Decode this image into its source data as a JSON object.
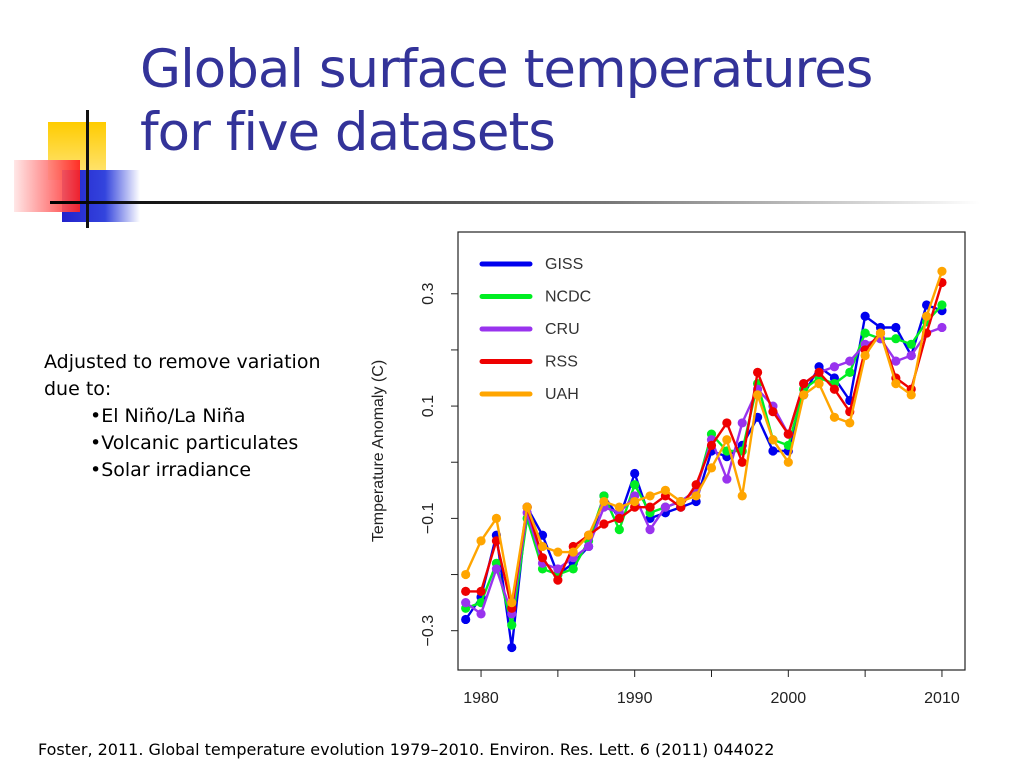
{
  "slide": {
    "title_lines": [
      "Global surface temperatures",
      "for five datasets"
    ],
    "intro": "Adjusted to remove variation due to:",
    "bullets": [
      "El Niño/La Niña",
      "Volcanic particulates",
      "Solar irradiance"
    ],
    "citation": "Foster, 2011. Global temperature evolution 1979–2010. Environ. Res. Lett. 6 (2011) 044022",
    "title_color": "#333399",
    "decor_colors": {
      "yellow": "#ffcc00",
      "red": "#ff3333",
      "blue": "#3333cc"
    }
  },
  "chart_data": {
    "type": "line",
    "title": "",
    "xlabel": "",
    "ylabel": "Temperature Anomaly (C)",
    "xlim": [
      1978.5,
      2011.5
    ],
    "ylim": [
      -0.37,
      0.41
    ],
    "xticks": [
      1980,
      1990,
      2000,
      2010
    ],
    "yticks": [
      -0.3,
      -0.1,
      0.1,
      0.3
    ],
    "ytick_labels": [
      "−0.3",
      "−0.1",
      "0.1",
      "0.3"
    ],
    "grid": false,
    "legend_position": "top-left",
    "x": [
      1979,
      1980,
      1981,
      1982,
      1983,
      1984,
      1985,
      1986,
      1987,
      1988,
      1989,
      1990,
      1991,
      1992,
      1993,
      1994,
      1995,
      1996,
      1997,
      1998,
      1999,
      2000,
      2001,
      2002,
      2003,
      2004,
      2005,
      2006,
      2007,
      2008,
      2009,
      2010
    ],
    "series": [
      {
        "name": "GISS",
        "color": "#0000ee",
        "values": [
          -0.28,
          -0.24,
          -0.13,
          -0.33,
          -0.08,
          -0.13,
          -0.2,
          -0.18,
          -0.15,
          -0.06,
          -0.1,
          -0.02,
          -0.1,
          -0.09,
          -0.08,
          -0.07,
          0.02,
          0.01,
          0.03,
          0.08,
          0.02,
          0.02,
          0.12,
          0.17,
          0.15,
          0.11,
          0.26,
          0.24,
          0.24,
          0.19,
          0.28,
          0.27
        ]
      },
      {
        "name": "NCDC",
        "color": "#00ee22",
        "values": [
          -0.26,
          -0.25,
          -0.18,
          -0.29,
          -0.1,
          -0.19,
          -0.2,
          -0.19,
          -0.14,
          -0.06,
          -0.12,
          -0.04,
          -0.09,
          -0.08,
          -0.07,
          -0.05,
          0.05,
          0.02,
          0.02,
          0.14,
          0.04,
          0.03,
          0.13,
          0.15,
          0.14,
          0.16,
          0.23,
          0.22,
          0.22,
          0.21,
          0.25,
          0.28
        ]
      },
      {
        "name": "CRU",
        "color": "#9933ee",
        "values": [
          -0.25,
          -0.27,
          -0.19,
          -0.27,
          -0.09,
          -0.18,
          -0.19,
          -0.17,
          -0.15,
          -0.08,
          -0.09,
          -0.06,
          -0.12,
          -0.08,
          -0.07,
          -0.05,
          0.04,
          -0.03,
          0.07,
          0.13,
          0.1,
          0.05,
          0.14,
          0.16,
          0.17,
          0.18,
          0.21,
          0.22,
          0.18,
          0.19,
          0.23,
          0.24
        ]
      },
      {
        "name": "RSS",
        "color": "#ee0000",
        "values": [
          -0.23,
          -0.23,
          -0.14,
          -0.26,
          -0.08,
          -0.17,
          -0.21,
          -0.15,
          -0.13,
          -0.11,
          -0.1,
          -0.08,
          -0.08,
          -0.06,
          -0.08,
          -0.04,
          0.03,
          0.07,
          0.0,
          0.16,
          0.09,
          0.05,
          0.14,
          0.16,
          0.13,
          0.09,
          0.2,
          0.23,
          0.15,
          0.13,
          0.23,
          0.32
        ]
      },
      {
        "name": "UAH",
        "color": "#ffa500",
        "values": [
          -0.2,
          -0.14,
          -0.1,
          -0.25,
          -0.08,
          -0.15,
          -0.16,
          -0.16,
          -0.13,
          -0.07,
          -0.08,
          -0.07,
          -0.06,
          -0.05,
          -0.07,
          -0.06,
          -0.01,
          0.04,
          -0.06,
          0.12,
          0.04,
          0.0,
          0.12,
          0.14,
          0.08,
          0.07,
          0.19,
          0.23,
          0.14,
          0.12,
          0.26,
          0.34
        ]
      }
    ]
  }
}
